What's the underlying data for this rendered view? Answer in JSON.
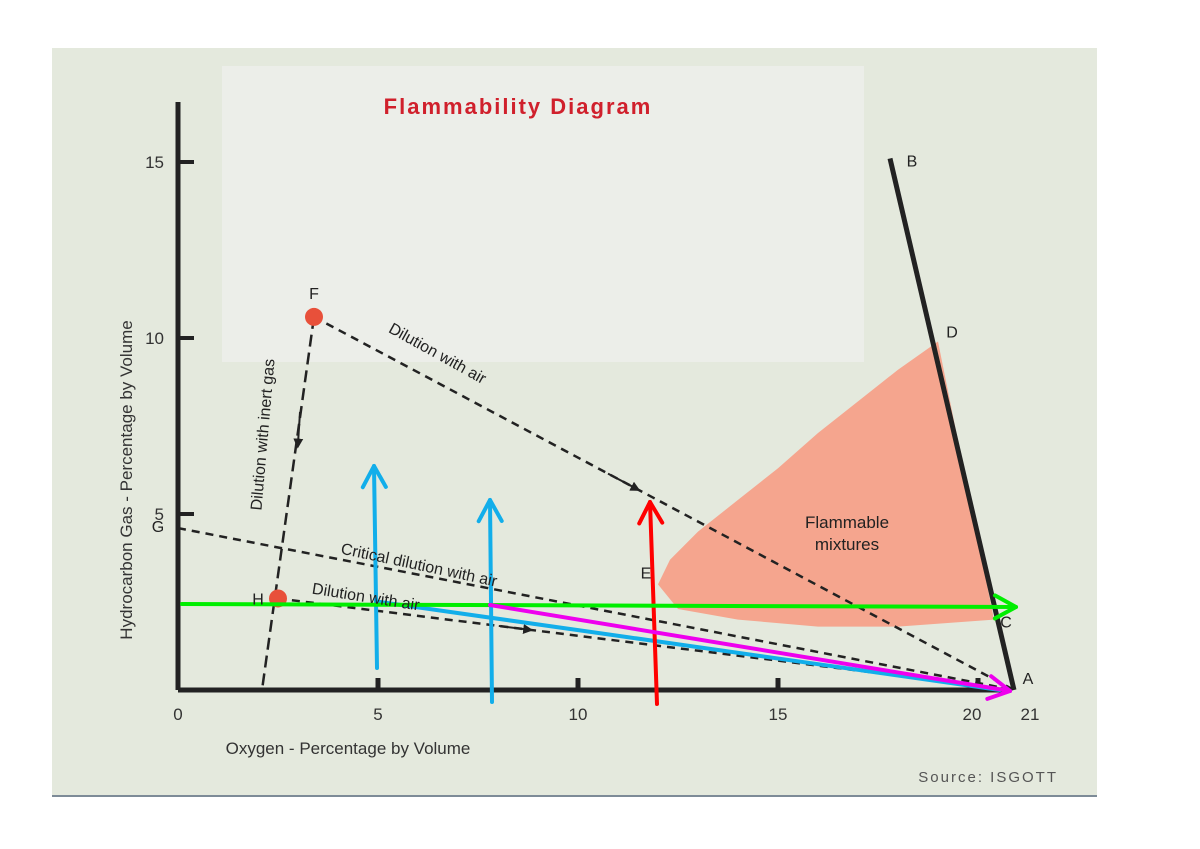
{
  "chart_data": {
    "type": "line",
    "title": "Flammability Diagram",
    "xlabel": "Oxygen - Percentage by Volume",
    "ylabel": "Hydrocarbon Gas - Percentage by Volume",
    "source": "Source: ISGOTT",
    "xlim": [
      0,
      21
    ],
    "ylim": [
      0,
      15
    ],
    "x_ticks": [
      0,
      5,
      10,
      15,
      20,
      21
    ],
    "y_ticks": [
      5,
      10,
      15
    ],
    "grid": false,
    "points": {
      "A": [
        20.9,
        0
      ],
      "B": [
        17.8,
        15.1
      ],
      "C": [
        20.4,
        2.0
      ],
      "D": [
        19.0,
        9.9
      ],
      "E": [
        12,
        3.0
      ],
      "F": [
        3.4,
        10.6
      ],
      "G": [
        0,
        4.6
      ],
      "H": [
        2.5,
        2.6
      ]
    },
    "point_labels": [
      "A",
      "B",
      "C",
      "D",
      "E",
      "F",
      "G",
      "H"
    ],
    "region": {
      "label": "Flammable mixtures",
      "line1": "Flammable",
      "line2": "mixtures",
      "color": "#f5a58e",
      "boundary": [
        [
          12,
          3.0
        ],
        [
          12.3,
          3.7
        ],
        [
          13,
          4.5
        ],
        [
          14,
          5.4
        ],
        [
          15,
          6.3
        ],
        [
          16,
          7.3
        ],
        [
          17,
          8.2
        ],
        [
          18,
          9.1
        ],
        [
          19,
          9.9
        ],
        [
          20.4,
          2.0
        ],
        [
          18,
          1.8
        ],
        [
          16,
          1.8
        ],
        [
          14,
          2.0
        ],
        [
          12.5,
          2.3
        ]
      ]
    },
    "annotations": {
      "dilution_inert": "Dilution with inert gas",
      "dilution_air_upper": "Dilution with air",
      "critical_dilution": "Critical dilution with air",
      "dilution_air_lower": "Dilution with air"
    },
    "overlay_colors": {
      "blue": "#12aeea",
      "red": "#ff0000",
      "green": "#00ee00",
      "magenta": "#ee00ee"
    }
  }
}
